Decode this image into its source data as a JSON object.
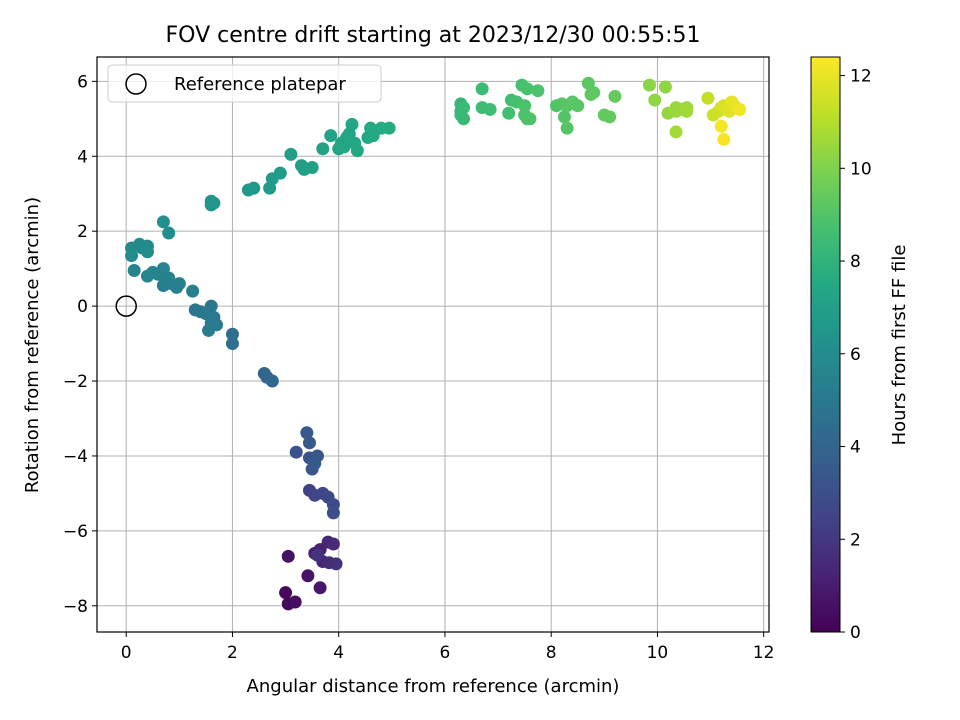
{
  "chart_data": {
    "type": "scatter",
    "title": "FOV centre drift starting at 2023/12/30 00:55:51",
    "xlabel": "Angular distance from reference (arcmin)",
    "ylabel": "Rotation from reference (arcmin)",
    "xlim": [
      -0.55,
      12.1
    ],
    "ylim": [
      -8.7,
      6.65
    ],
    "x_ticks": [
      0,
      2,
      4,
      6,
      8,
      10,
      12
    ],
    "y_ticks": [
      -8,
      -6,
      -4,
      -2,
      0,
      2,
      4,
      6
    ],
    "grid": true,
    "legend": {
      "placement": "top-left",
      "entries": [
        "Reference platepar"
      ]
    },
    "reference_point": {
      "x": 0,
      "y": 0
    },
    "colorbar": {
      "label": "Hours from first FF file",
      "range": [
        0,
        12.4
      ],
      "ticks": [
        0,
        2,
        4,
        6,
        8,
        10,
        12
      ],
      "colormap": "viridis"
    },
    "series": [
      {
        "points": [
          {
            "x": 3.0,
            "y": -7.65,
            "c": 0.2
          },
          {
            "x": 3.05,
            "y": -7.95,
            "c": 0.3
          },
          {
            "x": 3.18,
            "y": -7.9,
            "c": 0.4
          },
          {
            "x": 3.05,
            "y": -6.68,
            "c": 0.6
          },
          {
            "x": 3.42,
            "y": -7.2,
            "c": 0.7
          },
          {
            "x": 3.65,
            "y": -7.52,
            "c": 0.8
          },
          {
            "x": 3.55,
            "y": -6.6,
            "c": 1.1
          },
          {
            "x": 3.65,
            "y": -6.5,
            "c": 1.2
          },
          {
            "x": 3.7,
            "y": -6.82,
            "c": 1.3
          },
          {
            "x": 3.8,
            "y": -6.3,
            "c": 1.4
          },
          {
            "x": 3.9,
            "y": -6.35,
            "c": 1.5
          },
          {
            "x": 3.82,
            "y": -6.85,
            "c": 1.6
          },
          {
            "x": 3.95,
            "y": -6.88,
            "c": 1.7
          },
          {
            "x": 3.6,
            "y": -6.65,
            "c": 1.8
          },
          {
            "x": 3.45,
            "y": -4.92,
            "c": 2.4
          },
          {
            "x": 3.55,
            "y": -5.05,
            "c": 2.5
          },
          {
            "x": 3.7,
            "y": -5.0,
            "c": 2.6
          },
          {
            "x": 3.8,
            "y": -5.1,
            "c": 2.7
          },
          {
            "x": 3.9,
            "y": -5.3,
            "c": 2.8
          },
          {
            "x": 3.9,
            "y": -5.52,
            "c": 2.9
          },
          {
            "x": 3.2,
            "y": -3.9,
            "c": 3.1
          },
          {
            "x": 3.45,
            "y": -4.05,
            "c": 3.2
          },
          {
            "x": 3.6,
            "y": -4.0,
            "c": 3.3
          },
          {
            "x": 3.5,
            "y": -4.35,
            "c": 3.3
          },
          {
            "x": 3.4,
            "y": -3.38,
            "c": 3.4
          },
          {
            "x": 3.45,
            "y": -3.65,
            "c": 3.45
          },
          {
            "x": 3.55,
            "y": -4.2,
            "c": 3.5
          },
          {
            "x": 2.6,
            "y": -1.8,
            "c": 4.0
          },
          {
            "x": 2.65,
            "y": -1.9,
            "c": 4.05
          },
          {
            "x": 2.75,
            "y": -2.0,
            "c": 4.1
          },
          {
            "x": 2.0,
            "y": -0.75,
            "c": 4.5
          },
          {
            "x": 2.0,
            "y": -1.0,
            "c": 4.55
          },
          {
            "x": 1.3,
            "y": -0.1,
            "c": 4.8
          },
          {
            "x": 1.4,
            "y": -0.15,
            "c": 4.85
          },
          {
            "x": 1.5,
            "y": -0.2,
            "c": 4.9
          },
          {
            "x": 1.6,
            "y": 0.0,
            "c": 4.95
          },
          {
            "x": 1.65,
            "y": -0.3,
            "c": 5.0
          },
          {
            "x": 1.7,
            "y": -0.5,
            "c": 5.05
          },
          {
            "x": 1.55,
            "y": -0.65,
            "c": 5.1
          },
          {
            "x": 1.6,
            "y": -0.45,
            "c": 5.1
          },
          {
            "x": 0.7,
            "y": 0.55,
            "c": 5.2
          },
          {
            "x": 0.85,
            "y": 0.6,
            "c": 5.25
          },
          {
            "x": 0.95,
            "y": 0.5,
            "c": 5.3
          },
          {
            "x": 1.0,
            "y": 0.6,
            "c": 5.3
          },
          {
            "x": 1.25,
            "y": 0.4,
            "c": 5.35
          },
          {
            "x": 0.8,
            "y": 0.75,
            "c": 5.4
          },
          {
            "x": 0.7,
            "y": 1.0,
            "c": 5.45
          },
          {
            "x": 0.6,
            "y": 0.85,
            "c": 5.5
          },
          {
            "x": 0.5,
            "y": 0.9,
            "c": 5.5
          },
          {
            "x": 0.4,
            "y": 0.8,
            "c": 5.55
          },
          {
            "x": 0.15,
            "y": 0.95,
            "c": 5.6
          },
          {
            "x": 0.1,
            "y": 1.55,
            "c": 5.8
          },
          {
            "x": 0.25,
            "y": 1.65,
            "c": 5.85
          },
          {
            "x": 0.4,
            "y": 1.6,
            "c": 5.9
          },
          {
            "x": 0.3,
            "y": 1.55,
            "c": 5.9
          },
          {
            "x": 0.4,
            "y": 1.45,
            "c": 5.95
          },
          {
            "x": 0.1,
            "y": 1.35,
            "c": 5.95
          },
          {
            "x": 0.7,
            "y": 2.25,
            "c": 6.1
          },
          {
            "x": 0.8,
            "y": 1.95,
            "c": 6.15
          },
          {
            "x": 1.6,
            "y": 2.8,
            "c": 6.4
          },
          {
            "x": 1.6,
            "y": 2.7,
            "c": 6.45
          },
          {
            "x": 1.65,
            "y": 2.75,
            "c": 6.45
          },
          {
            "x": 2.3,
            "y": 3.1,
            "c": 6.6
          },
          {
            "x": 2.4,
            "y": 3.15,
            "c": 6.65
          },
          {
            "x": 2.7,
            "y": 3.15,
            "c": 6.7
          },
          {
            "x": 2.75,
            "y": 3.4,
            "c": 6.75
          },
          {
            "x": 2.9,
            "y": 3.55,
            "c": 6.8
          },
          {
            "x": 3.1,
            "y": 4.05,
            "c": 6.85
          },
          {
            "x": 3.3,
            "y": 3.75,
            "c": 6.9
          },
          {
            "x": 3.35,
            "y": 3.65,
            "c": 6.95
          },
          {
            "x": 3.5,
            "y": 3.7,
            "c": 6.95
          },
          {
            "x": 3.7,
            "y": 4.2,
            "c": 7.05
          },
          {
            "x": 3.85,
            "y": 4.55,
            "c": 7.1
          },
          {
            "x": 4.0,
            "y": 4.2,
            "c": 7.2
          },
          {
            "x": 4.05,
            "y": 4.35,
            "c": 7.25
          },
          {
            "x": 4.1,
            "y": 4.25,
            "c": 7.25
          },
          {
            "x": 4.15,
            "y": 4.5,
            "c": 7.3
          },
          {
            "x": 4.2,
            "y": 4.6,
            "c": 7.3
          },
          {
            "x": 4.25,
            "y": 4.85,
            "c": 7.35
          },
          {
            "x": 4.3,
            "y": 4.35,
            "c": 7.35
          },
          {
            "x": 4.35,
            "y": 4.15,
            "c": 7.4
          },
          {
            "x": 4.55,
            "y": 4.5,
            "c": 7.45
          },
          {
            "x": 4.6,
            "y": 4.75,
            "c": 7.5
          },
          {
            "x": 4.65,
            "y": 4.55,
            "c": 7.5
          },
          {
            "x": 4.8,
            "y": 4.75,
            "c": 7.55
          },
          {
            "x": 4.95,
            "y": 4.75,
            "c": 7.6
          },
          {
            "x": 6.3,
            "y": 5.4,
            "c": 8.2
          },
          {
            "x": 6.3,
            "y": 5.2,
            "c": 8.25
          },
          {
            "x": 6.3,
            "y": 5.1,
            "c": 8.3
          },
          {
            "x": 6.35,
            "y": 5.0,
            "c": 8.3
          },
          {
            "x": 6.35,
            "y": 5.3,
            "c": 8.35
          },
          {
            "x": 6.7,
            "y": 5.8,
            "c": 8.4
          },
          {
            "x": 6.7,
            "y": 5.3,
            "c": 8.45
          },
          {
            "x": 6.85,
            "y": 5.25,
            "c": 8.5
          },
          {
            "x": 7.2,
            "y": 5.15,
            "c": 8.6
          },
          {
            "x": 7.25,
            "y": 5.5,
            "c": 8.65
          },
          {
            "x": 7.35,
            "y": 5.45,
            "c": 8.7
          },
          {
            "x": 7.45,
            "y": 5.9,
            "c": 8.75
          },
          {
            "x": 7.5,
            "y": 5.35,
            "c": 8.8
          },
          {
            "x": 7.55,
            "y": 5.8,
            "c": 8.8
          },
          {
            "x": 7.5,
            "y": 5.1,
            "c": 8.85
          },
          {
            "x": 7.55,
            "y": 5.0,
            "c": 8.85
          },
          {
            "x": 7.6,
            "y": 5.0,
            "c": 8.9
          },
          {
            "x": 7.75,
            "y": 5.75,
            "c": 8.9
          },
          {
            "x": 8.1,
            "y": 5.35,
            "c": 9.0
          },
          {
            "x": 8.2,
            "y": 5.4,
            "c": 9.05
          },
          {
            "x": 8.25,
            "y": 5.05,
            "c": 9.05
          },
          {
            "x": 8.3,
            "y": 4.75,
            "c": 9.1
          },
          {
            "x": 8.3,
            "y": 5.35,
            "c": 9.1
          },
          {
            "x": 8.4,
            "y": 5.45,
            "c": 9.15
          },
          {
            "x": 8.5,
            "y": 5.35,
            "c": 9.15
          },
          {
            "x": 8.7,
            "y": 5.95,
            "c": 9.2
          },
          {
            "x": 8.75,
            "y": 5.65,
            "c": 9.25
          },
          {
            "x": 8.8,
            "y": 5.7,
            "c": 9.3
          },
          {
            "x": 9.0,
            "y": 5.1,
            "c": 9.35
          },
          {
            "x": 9.1,
            "y": 5.05,
            "c": 9.4
          },
          {
            "x": 9.2,
            "y": 5.6,
            "c": 9.45
          },
          {
            "x": 9.85,
            "y": 5.9,
            "c": 10.2
          },
          {
            "x": 9.95,
            "y": 5.5,
            "c": 10.3
          },
          {
            "x": 10.15,
            "y": 5.85,
            "c": 10.35
          },
          {
            "x": 10.2,
            "y": 5.15,
            "c": 10.4
          },
          {
            "x": 10.35,
            "y": 5.2,
            "c": 10.45
          },
          {
            "x": 10.35,
            "y": 5.3,
            "c": 10.5
          },
          {
            "x": 10.45,
            "y": 5.25,
            "c": 10.55
          },
          {
            "x": 10.55,
            "y": 5.2,
            "c": 10.6
          },
          {
            "x": 10.55,
            "y": 5.3,
            "c": 10.65
          },
          {
            "x": 10.35,
            "y": 4.65,
            "c": 10.7
          },
          {
            "x": 10.95,
            "y": 5.55,
            "c": 11.3
          },
          {
            "x": 11.05,
            "y": 5.1,
            "c": 11.4
          },
          {
            "x": 11.15,
            "y": 5.2,
            "c": 11.5
          },
          {
            "x": 11.2,
            "y": 5.3,
            "c": 11.6
          },
          {
            "x": 11.25,
            "y": 5.35,
            "c": 11.7
          },
          {
            "x": 11.35,
            "y": 5.2,
            "c": 11.8
          },
          {
            "x": 11.4,
            "y": 5.45,
            "c": 11.9
          },
          {
            "x": 11.45,
            "y": 5.35,
            "c": 12.0
          },
          {
            "x": 11.55,
            "y": 5.25,
            "c": 12.1
          },
          {
            "x": 11.2,
            "y": 4.8,
            "c": 12.2
          },
          {
            "x": 11.25,
            "y": 4.45,
            "c": 12.3
          }
        ]
      }
    ]
  }
}
